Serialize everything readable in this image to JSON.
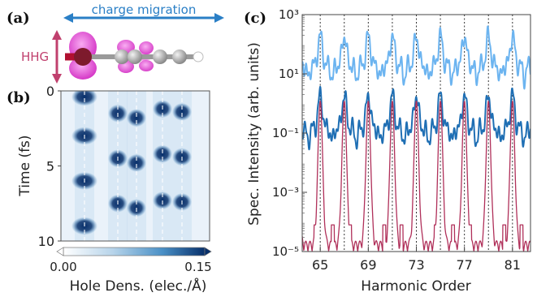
{
  "panel_labels": {
    "a": "(a)",
    "b": "(b)",
    "c": "(c)"
  },
  "molecule": {
    "migration_label": "charge migration",
    "hhg_label": "HHG",
    "colors": {
      "arrow_migration": "#2a7fc6",
      "arrow_hhg": "#c0406e",
      "hole_density": "#e040d0",
      "atom": "#a8a8a8"
    }
  },
  "chart_data": [
    {
      "type": "heatmap",
      "panel": "(b)",
      "ylabel": "Time (fs)",
      "yticks": [
        "0",
        "5",
        "10"
      ],
      "ylim": [
        0,
        10
      ],
      "colorbar": {
        "min_label": "0.00",
        "max_label": "0.15",
        "label": "Hole Dens. (elec./Å)",
        "range": [
          0,
          0.15
        ],
        "colors": [
          "#ffffff",
          "#08306b"
        ]
      },
      "columns": [
        0,
        1,
        2,
        3,
        4
      ],
      "peaks": [
        {
          "column": 0,
          "times": [
            0.4,
            3.0,
            6.0,
            9.0
          ]
        },
        {
          "column": 1,
          "times": [
            1.5,
            4.5,
            7.5
          ]
        },
        {
          "column": 2,
          "times": [
            1.8,
            4.8,
            7.8
          ]
        },
        {
          "column": 3,
          "times": [
            1.2,
            4.2,
            7.3
          ]
        },
        {
          "column": 4,
          "times": [
            1.4,
            4.4,
            7.4
          ]
        }
      ]
    },
    {
      "type": "line",
      "panel": "(c)",
      "xlabel": "Harmonic Order",
      "ylabel": "Spec. Intensity (arb. units)",
      "yscale": "log",
      "xlim": [
        63.5,
        82.5
      ],
      "ylim": [
        1e-05,
        1000
      ],
      "xticks": [
        "65",
        "69",
        "73",
        "77",
        "81"
      ],
      "xtick_values": [
        65,
        69,
        73,
        77,
        81
      ],
      "yticks": [
        "10³",
        "10¹",
        "10⁻¹",
        "10⁻³",
        "10⁻⁵"
      ],
      "ytick_values": [
        1000,
        10,
        0.1,
        0.001,
        1e-05
      ],
      "odd_harmonic_markers": [
        65,
        67,
        69,
        71,
        73,
        75,
        77,
        79,
        81
      ],
      "series": [
        {
          "color": "#6cb4f0",
          "baseline": 20,
          "peak": 200
        },
        {
          "color": "#1f6fb4",
          "baseline": 0.15,
          "peak": 2
        },
        {
          "color": "#b0305a",
          "baseline": 1e-05,
          "peak": 1.2
        }
      ]
    }
  ]
}
